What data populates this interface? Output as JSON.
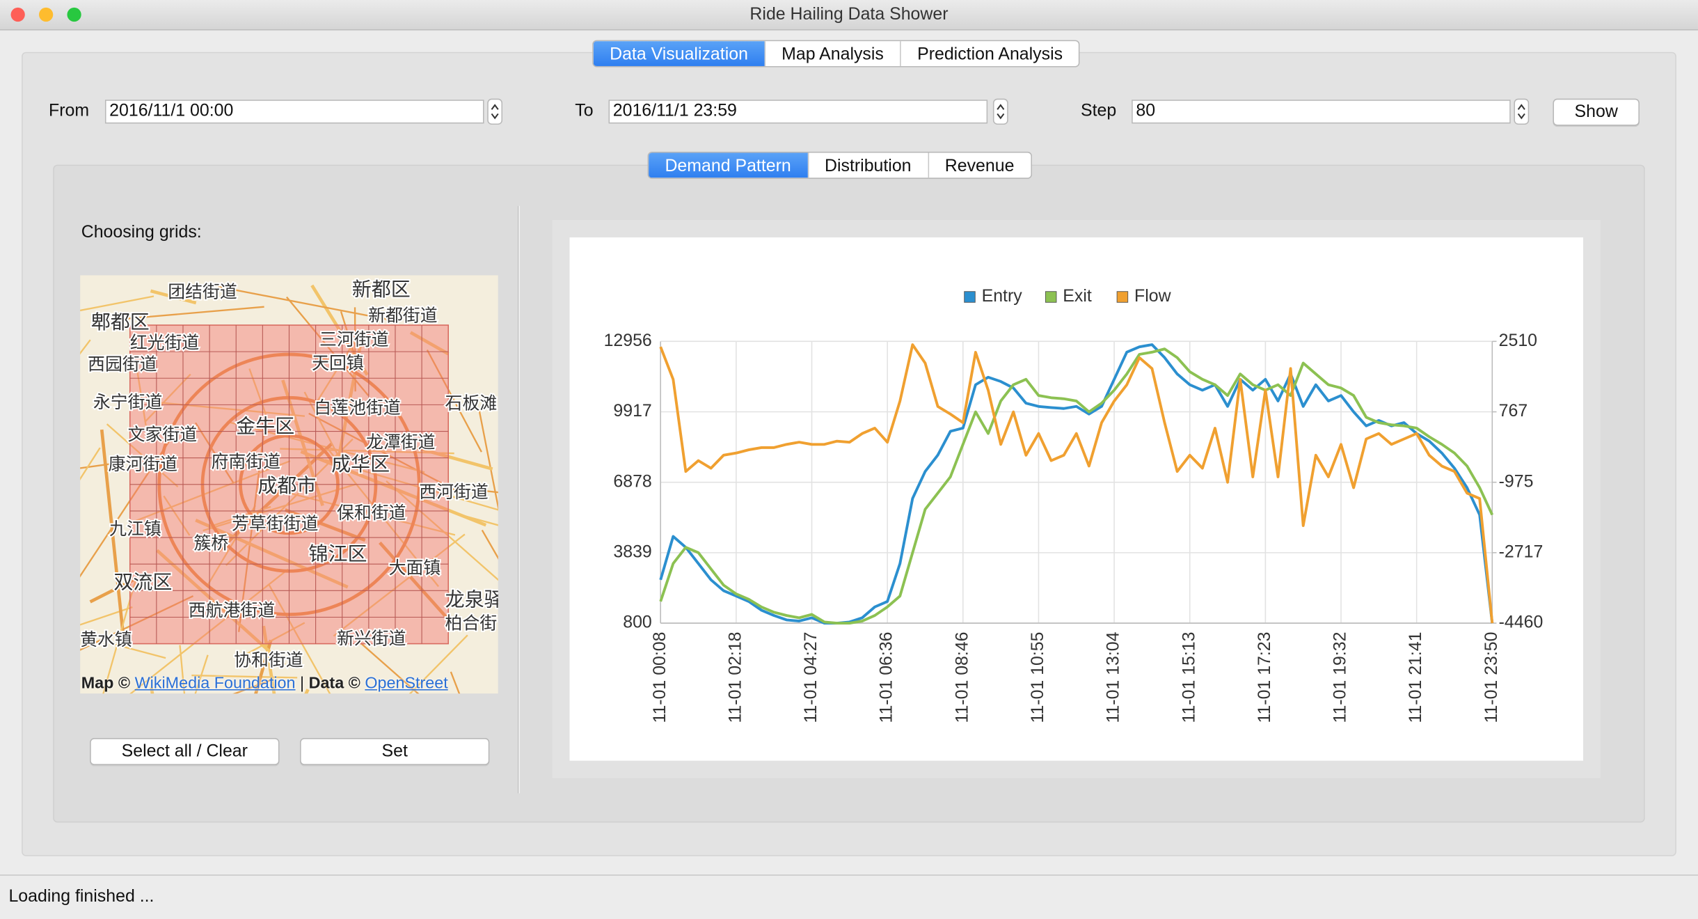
{
  "window": {
    "title": "Ride Hailing Data Shower"
  },
  "tabs": [
    "Data Visualization",
    "Map Analysis",
    "Prediction Analysis"
  ],
  "form": {
    "from_label": "From",
    "from_value": "2016/11/1 00:00",
    "to_label": "To",
    "to_value": "2016/11/1 23:59",
    "step_label": "Step",
    "step_value": "80",
    "show_button": "Show"
  },
  "subtabs": [
    "Demand Pattern",
    "Distribution",
    "Revenue"
  ],
  "grid_panel": {
    "label": "Choosing grids:",
    "map_labels": [
      "团结街道",
      "新都区",
      "新都街道",
      "郫都区",
      "红光街道",
      "三河街道",
      "西园街道",
      "天回镇",
      "永宁街道",
      "白莲池街道",
      "石板滩",
      "金牛区",
      "文家街道",
      "龙潭街道",
      "康河街道",
      "府南街道",
      "成华区",
      "成都市",
      "西河街道",
      "保和街道",
      "九江镇",
      "芳草街街道",
      "簇桥",
      "锦江区",
      "大面镇",
      "双流区",
      "西航港街道",
      "新兴街道",
      "协和街道",
      "柏合街",
      "龙泉驿",
      "黄水镇"
    ],
    "attribution": {
      "map": "Map ©",
      "map_link": "WikiMedia Foundation",
      "sep": "|",
      "data": "Data ©",
      "data_link": "OpenStreet"
    },
    "buttons": [
      "Select all / Clear",
      "Set"
    ]
  },
  "chart_data": {
    "type": "line",
    "categories": [
      "11-01 00:08",
      null,
      null,
      null,
      null,
      null,
      "11-01 02:18",
      null,
      null,
      null,
      null,
      null,
      "11-01 04:27",
      null,
      null,
      null,
      null,
      null,
      "11-01 06:36",
      null,
      null,
      null,
      null,
      null,
      "11-01 08:46",
      null,
      null,
      null,
      null,
      null,
      "11-01 10:55",
      null,
      null,
      null,
      null,
      null,
      "11-01 13:04",
      null,
      null,
      null,
      null,
      null,
      "11-01 15:13",
      null,
      null,
      null,
      null,
      null,
      "11-01 17:23",
      null,
      null,
      null,
      null,
      null,
      "11-01 19:32",
      null,
      null,
      null,
      null,
      null,
      "11-01 21:41",
      null,
      null,
      null,
      null,
      null,
      "11-01 23:50"
    ],
    "series": [
      {
        "name": "Entry",
        "color": "#2b8fcf",
        "values": [
          2670,
          4540,
          4070,
          3370,
          2670,
          2200,
          1970,
          1735,
          1360,
          1130,
          940,
          890,
          1030,
          800,
          800,
          850,
          1030,
          1500,
          1735,
          3370,
          6180,
          7345,
          8050,
          9075,
          9215,
          11085,
          11410,
          11225,
          10945,
          10290,
          10150,
          10100,
          10060,
          10150,
          9820,
          10150,
          11320,
          12490,
          12720,
          12815,
          12255,
          11550,
          11085,
          10850,
          11085,
          10150,
          11320,
          10850,
          11320,
          10385,
          11550,
          10150,
          11085,
          10385,
          10620,
          9915,
          9310,
          9545,
          9310,
          9450,
          8980,
          8655,
          8140,
          7485,
          6645,
          5475,
          800
        ]
      },
      {
        "name": "Exit",
        "color": "#8cc152",
        "values": [
          1735,
          3370,
          4070,
          3840,
          3140,
          2440,
          2060,
          1830,
          1500,
          1270,
          1130,
          1030,
          1175,
          850,
          800,
          800,
          890,
          1130,
          1500,
          1970,
          3840,
          5710,
          6410,
          7110,
          8515,
          9915,
          8980,
          10385,
          11085,
          11320,
          10620,
          10525,
          10480,
          10385,
          9915,
          10290,
          10850,
          11550,
          12395,
          12490,
          12630,
          12255,
          11645,
          11320,
          11085,
          10620,
          11550,
          11085,
          10850,
          11085,
          10620,
          12020,
          11550,
          11085,
          10945,
          10620,
          9680,
          9450,
          9355,
          9310,
          9215,
          8840,
          8515,
          8140,
          7580,
          6645,
          5475
        ]
      },
      {
        "name": "Flow",
        "color": "#f0a030",
        "axis": "y2",
        "values": [
          2374,
          1570,
          -708,
          -440,
          -628,
          -306,
          -252,
          -172,
          -118,
          -118,
          -38,
          16,
          -38,
          -38,
          42,
          16,
          230,
          364,
          16,
          1034,
          2428,
          1972,
          900,
          712,
          498,
          2240,
          1302,
          -38,
          766,
          -306,
          230,
          -440,
          -306,
          230,
          -574,
          498,
          1034,
          1436,
          2106,
          1838,
          498,
          -708,
          -306,
          -628,
          364,
          -976,
          1570,
          -842,
          1302,
          -842,
          1838,
          -2048,
          -306,
          -842,
          -38,
          -1110,
          96,
          230,
          -38,
          96,
          230,
          -306,
          -574,
          -708,
          -1244,
          -1378,
          -4460
        ]
      }
    ],
    "ylim": [
      800,
      12956
    ],
    "yticks": [
      800,
      3839,
      6878,
      9917,
      12956
    ],
    "y2lim": [
      -4460,
      2510
    ],
    "y2ticks": [
      -4460,
      -2717,
      -975,
      767,
      2510
    ],
    "grid": true,
    "legend": "top"
  },
  "status": "Loading finished ..."
}
